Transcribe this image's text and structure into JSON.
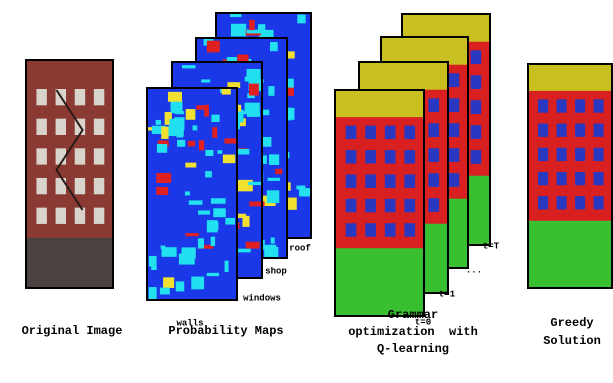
{
  "labels": {
    "original": "Original Image",
    "maps": "Probability Maps",
    "grammar": [
      "Grammar",
      "optimization  with",
      "Q-learning"
    ],
    "greedy": [
      "Greedy",
      "Solution"
    ]
  },
  "map_labels": [
    "walls",
    "windows",
    "shop",
    "roof"
  ],
  "steps": [
    "t=0",
    "t=1",
    "...",
    "t=T"
  ]
}
